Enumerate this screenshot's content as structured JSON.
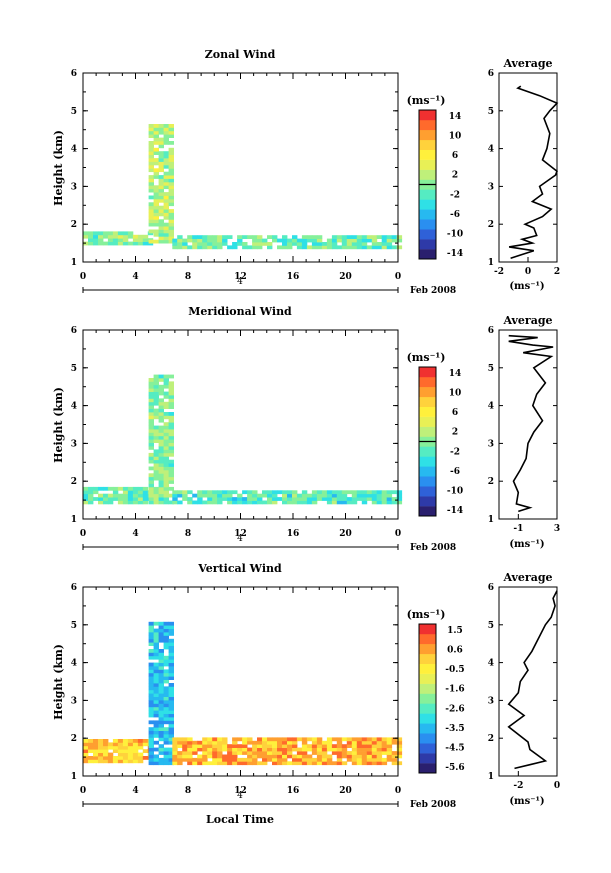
{
  "date_label": "Feb 2008",
  "day_label": "4",
  "x_title": "Local Time",
  "colorbar_unit": "(ms⁻¹)",
  "chart_data": [
    {
      "type": "heatmap",
      "title": "Zonal Wind",
      "xlabel": "",
      "ylabel": "Height (km)",
      "xlim": [
        0,
        24
      ],
      "ylim": [
        1,
        6
      ],
      "xticks": [
        "0",
        "4",
        "8",
        "12",
        "16",
        "20",
        "0"
      ],
      "yticks": [
        "1",
        "2",
        "3",
        "4",
        "5",
        "6"
      ],
      "colorbar": {
        "min": -15,
        "max": 15,
        "ticks": [
          "14",
          "10",
          "6",
          "2",
          "-2",
          "-6",
          "-10",
          "-14"
        ]
      },
      "regions": [
        {
          "x": [
            0,
            5
          ],
          "y": [
            1.45,
            1.75
          ],
          "value": 0
        },
        {
          "x": [
            5,
            6.8
          ],
          "y": [
            1.5,
            4.6
          ],
          "value": 2
        },
        {
          "x": [
            6.8,
            24
          ],
          "y": [
            1.35,
            1.7
          ],
          "value": -1
        }
      ],
      "profile": {
        "title": "Average",
        "xlabel": "(ms⁻¹)",
        "xlim": [
          -2,
          2
        ],
        "xticks": [
          "-2",
          "0",
          "2"
        ],
        "yticks": [
          "1",
          "2",
          "3",
          "4",
          "5",
          "6"
        ],
        "points": [
          [
            -1.2,
            1.1
          ],
          [
            0.4,
            1.3
          ],
          [
            -1.3,
            1.4
          ],
          [
            0.3,
            1.5
          ],
          [
            -0.4,
            1.6
          ],
          [
            0.6,
            1.7
          ],
          [
            0.4,
            1.9
          ],
          [
            -0.2,
            2.0
          ],
          [
            1.0,
            2.2
          ],
          [
            1.6,
            2.4
          ],
          [
            0.3,
            2.6
          ],
          [
            1.0,
            2.8
          ],
          [
            0.8,
            3.0
          ],
          [
            1.9,
            3.3
          ],
          [
            2.0,
            3.4
          ],
          [
            1.0,
            3.7
          ],
          [
            1.3,
            4.0
          ],
          [
            1.5,
            4.4
          ],
          [
            1.1,
            4.8
          ],
          [
            1.5,
            5.0
          ],
          [
            2.0,
            5.2
          ],
          [
            0.8,
            5.4
          ],
          [
            -0.7,
            5.6
          ],
          [
            -0.5,
            5.65
          ]
        ]
      }
    },
    {
      "type": "heatmap",
      "title": "Meridional Wind",
      "xlabel": "",
      "ylabel": "Height (km)",
      "xlim": [
        0,
        24
      ],
      "ylim": [
        1,
        6
      ],
      "xticks": [
        "0",
        "4",
        "8",
        "12",
        "16",
        "20",
        "0"
      ],
      "yticks": [
        "1",
        "2",
        "3",
        "4",
        "5",
        "6"
      ],
      "colorbar": {
        "min": -15,
        "max": 15,
        "ticks": [
          "14",
          "10",
          "6",
          "2",
          "-2",
          "-6",
          "-10",
          "-14"
        ]
      },
      "regions": [
        {
          "x": [
            0,
            5
          ],
          "y": [
            1.4,
            1.8
          ],
          "value": -1
        },
        {
          "x": [
            5,
            6.8
          ],
          "y": [
            1.4,
            4.8
          ],
          "value": 0
        },
        {
          "x": [
            6.8,
            24
          ],
          "y": [
            1.4,
            1.7
          ],
          "value": -2
        }
      ],
      "profile": {
        "title": "Average",
        "xlabel": "(ms⁻¹)",
        "xlim": [
          -3,
          3
        ],
        "xticks": [
          "-1",
          "3"
        ],
        "yticks": [
          "1",
          "2",
          "3",
          "4",
          "5",
          "6"
        ],
        "points": [
          [
            -1.0,
            1.2
          ],
          [
            0.2,
            1.3
          ],
          [
            -1.2,
            1.4
          ],
          [
            -1.0,
            1.7
          ],
          [
            -1.5,
            2.0
          ],
          [
            -0.8,
            2.3
          ],
          [
            -0.2,
            2.6
          ],
          [
            0.0,
            3.0
          ],
          [
            0.6,
            3.3
          ],
          [
            1.5,
            3.6
          ],
          [
            0.5,
            4.0
          ],
          [
            0.9,
            4.3
          ],
          [
            1.8,
            4.6
          ],
          [
            1.2,
            4.8
          ],
          [
            0.6,
            5.0
          ],
          [
            2.4,
            5.3
          ],
          [
            -0.5,
            5.4
          ],
          [
            2.6,
            5.55
          ],
          [
            0.5,
            5.6
          ],
          [
            -2.0,
            5.7
          ],
          [
            1.0,
            5.8
          ],
          [
            -2.0,
            5.85
          ]
        ]
      }
    },
    {
      "type": "heatmap",
      "title": "Vertical Wind",
      "xlabel": "Local Time",
      "ylabel": "Height (km)",
      "xlim": [
        0,
        24
      ],
      "ylim": [
        1,
        6
      ],
      "xticks": [
        "0",
        "4",
        "8",
        "12",
        "16",
        "20",
        "0"
      ],
      "yticks": [
        "1",
        "2",
        "3",
        "4",
        "5",
        "6"
      ],
      "colorbar": {
        "min": -6,
        "max": 2,
        "ticks": [
          "1.5",
          "0.6",
          "-0.5",
          "-1.6",
          "-2.6",
          "-3.5",
          "-4.5",
          "-5.6"
        ]
      },
      "regions": [
        {
          "x": [
            0,
            5
          ],
          "y": [
            1.35,
            1.95
          ],
          "value": 0.2
        },
        {
          "x": [
            5,
            6.8
          ],
          "y": [
            1.3,
            5.0
          ],
          "value": -3.5
        },
        {
          "x": [
            6.8,
            24
          ],
          "y": [
            1.3,
            1.95
          ],
          "value": 0.4
        }
      ],
      "profile": {
        "title": "Average",
        "xlabel": "(ms⁻¹)",
        "xlim": [
          -3,
          0
        ],
        "xticks": [
          "-2",
          "0"
        ],
        "yticks": [
          "1",
          "2",
          "3",
          "4",
          "5",
          "6"
        ],
        "points": [
          [
            -2.2,
            1.2
          ],
          [
            -1.4,
            1.3
          ],
          [
            -0.6,
            1.4
          ],
          [
            -1.4,
            1.7
          ],
          [
            -1.5,
            1.9
          ],
          [
            -2.5,
            2.3
          ],
          [
            -1.7,
            2.6
          ],
          [
            -2.5,
            2.9
          ],
          [
            -2.0,
            3.2
          ],
          [
            -1.9,
            3.5
          ],
          [
            -1.5,
            3.8
          ],
          [
            -1.7,
            4.0
          ],
          [
            -1.3,
            4.3
          ],
          [
            -1.0,
            4.6
          ],
          [
            -0.6,
            5.0
          ],
          [
            -0.3,
            5.2
          ],
          [
            -0.1,
            5.5
          ],
          [
            -0.2,
            5.7
          ],
          [
            0.0,
            5.9
          ]
        ]
      }
    }
  ]
}
